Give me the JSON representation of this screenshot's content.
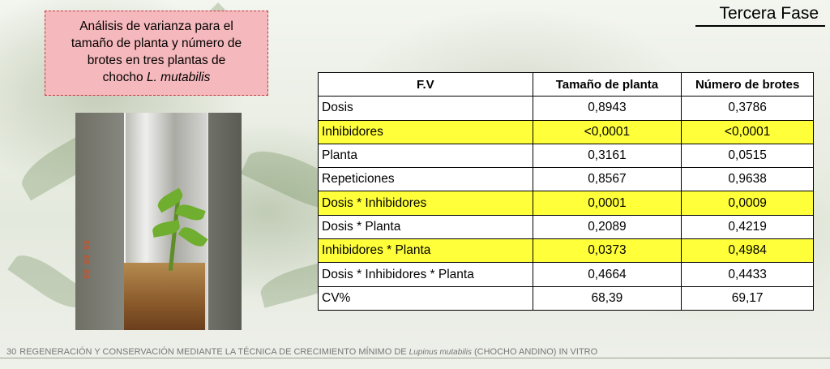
{
  "header": {
    "phase_title": "Tercera Fase"
  },
  "caption": {
    "line1": "Análisis de varianza para el",
    "line2": "tamaño de planta y número de",
    "line3": "brotes en tres plantas de",
    "line4_prefix": "chocho ",
    "line4_italic": "L. mutabilis"
  },
  "photo": {
    "stamp": "08 03 03"
  },
  "table": {
    "headers": [
      "F.V",
      "Tamaño de planta",
      "Número de brotes"
    ],
    "rows": [
      {
        "source": "Dosis",
        "tamano": "0,8943",
        "brotes": "0,3786",
        "highlight": false
      },
      {
        "source": "Inhibidores",
        "tamano": "<0,0001",
        "brotes": "<0,0001",
        "highlight": true
      },
      {
        "source": "Planta",
        "tamano": "0,3161",
        "brotes": "0,0515",
        "highlight": false
      },
      {
        "source": "Repeticiones",
        "tamano": "0,8567",
        "brotes": "0,9638",
        "highlight": false
      },
      {
        "source": "Dosis * Inhibidores",
        "tamano": "0,0001",
        "brotes": "0,0009",
        "highlight": true
      },
      {
        "source": "Dosis * Planta",
        "tamano": "0,2089",
        "brotes": "0,4219",
        "highlight": false
      },
      {
        "source": "Inhibidores * Planta",
        "tamano": "0,0373",
        "brotes": "0,4984",
        "highlight": true
      },
      {
        "source": "Dosis * Inhibidores * Planta",
        "tamano": "0,4664",
        "brotes": "0,4433",
        "highlight": false
      },
      {
        "source": "CV%",
        "tamano": "68,39",
        "brotes": "69,17",
        "highlight": false
      }
    ],
    "highlight_color": "#ffff3a"
  },
  "footer": {
    "page_number": "30",
    "text_before": "REGENERACIÓN Y CONSERVACIÓN MEDIANTE LA TÉCNICA DE CRECIMIENTO MÍNIMO DE ",
    "text_italic": "Lupinus mutabilis",
    "text_after": " (CHOCHO ANDINO) IN VITRO"
  }
}
